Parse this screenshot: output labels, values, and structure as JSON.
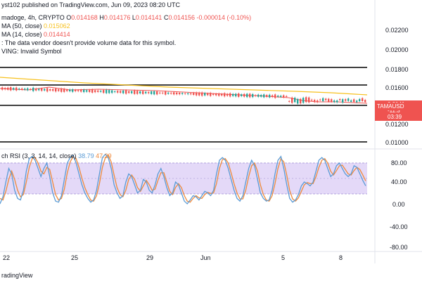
{
  "header": {
    "line1": "yst102 published on TradingView.com, Jun 09, 2023 08:20 UTC",
    "symbol": "madoge, 4h, CRYPTO",
    "open_label": "O",
    "open": "0.014168",
    "high_label": "H",
    "high": "0.014176",
    "low_label": "L",
    "low": "0.014141",
    "close_label": "C",
    "close": "0.014156",
    "change": "-0.000014 (-0.10%)",
    "ma50_label": "MA (50, close)",
    "ma50_value": "0.015062",
    "ma14_label": "MA (14, close)",
    "ma14_value": "0.014414",
    "volume_note": ": The data vendor doesn't provide volume data for this symbol.",
    "warning": "VING: Invalid Symbol"
  },
  "price_axis": {
    "labels": [
      "0.02200",
      "0.02000",
      "0.01800",
      "0.01600",
      "0.01400",
      "0.01200",
      "0.01000"
    ],
    "tag_symbol": "TAMAUSD",
    "tag_price": "0.0141",
    "tag_change": "-11.3",
    "tag_time": "03:39"
  },
  "rsi": {
    "label": "ch RSI (3, 3, 14, 14, close)",
    "k_value": "38.79",
    "d_value": "47.29",
    "axis_labels": [
      "80.00",
      "40.00",
      "0.00",
      "-40.00",
      "-80.00"
    ],
    "k_series": [
      5,
      18,
      45,
      70,
      60,
      30,
      15,
      12,
      30,
      65,
      88,
      92,
      85,
      70,
      55,
      70,
      80,
      55,
      25,
      10,
      8,
      20,
      50,
      80,
      90,
      94,
      80,
      60,
      40,
      25,
      15,
      8,
      12,
      30,
      60,
      90,
      96,
      90,
      70,
      40,
      25,
      15,
      20,
      45,
      60,
      55,
      40,
      25,
      30,
      50,
      45,
      30,
      25,
      40,
      60,
      70,
      55,
      35,
      20,
      25,
      45,
      40,
      25,
      10,
      5,
      12,
      20,
      18,
      12,
      20,
      28,
      25,
      20,
      30,
      60,
      85,
      90,
      85,
      70,
      50,
      30,
      15,
      10,
      20,
      45,
      70,
      85,
      75,
      50,
      25,
      15,
      10,
      12,
      30,
      60,
      85,
      92,
      70,
      40,
      15,
      8,
      12,
      22,
      38,
      45,
      42,
      38,
      45,
      65,
      85,
      90,
      85,
      70,
      55,
      60,
      75,
      80,
      70,
      60,
      55,
      60,
      75,
      72,
      60,
      48,
      38
    ],
    "d_series": [
      15,
      12,
      28,
      50,
      65,
      50,
      30,
      18,
      22,
      45,
      72,
      88,
      90,
      80,
      65,
      60,
      72,
      68,
      45,
      22,
      12,
      15,
      32,
      62,
      82,
      92,
      88,
      72,
      52,
      35,
      22,
      12,
      10,
      20,
      42,
      72,
      90,
      94,
      82,
      58,
      35,
      22,
      18,
      30,
      50,
      58,
      50,
      35,
      28,
      38,
      48,
      40,
      30,
      32,
      48,
      62,
      62,
      45,
      28,
      22,
      35,
      42,
      35,
      20,
      10,
      8,
      15,
      20,
      16,
      15,
      22,
      26,
      24,
      25,
      42,
      70,
      86,
      88,
      80,
      62,
      42,
      25,
      14,
      14,
      30,
      55,
      75,
      80,
      65,
      40,
      22,
      12,
      10,
      20,
      42,
      70,
      88,
      82,
      58,
      30,
      14,
      10,
      16,
      28,
      40,
      44,
      42,
      42,
      55,
      72,
      85,
      88,
      80,
      65,
      58,
      66,
      75,
      76,
      68,
      60,
      58,
      66,
      72,
      68,
      58,
      47
    ]
  },
  "x_axis": {
    "labels": [
      "22",
      "25",
      "29",
      "Jun",
      "5",
      "8"
    ]
  },
  "footer": {
    "brand": "radingView"
  },
  "colors": {
    "ma50": "#f7c11e",
    "ma14": "#ef5350",
    "up": "#26a69a",
    "down": "#ef5350",
    "rsi_k": "#5b9bd5",
    "rsi_d": "#ef8a3c",
    "rsi_band": "#d9c9f5"
  }
}
